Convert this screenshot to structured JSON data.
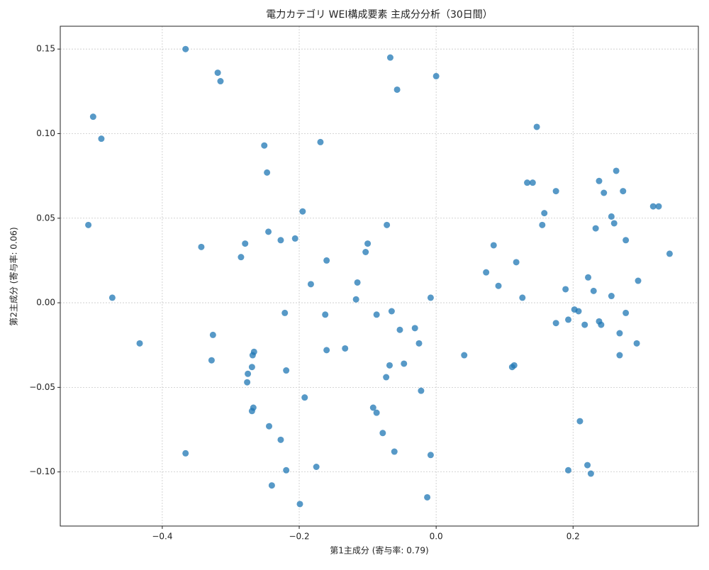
{
  "chart_data": {
    "type": "scatter",
    "title": "電力カテゴリ WEI構成要素 主成分分析（30日間）",
    "xlabel": "第1主成分 (寄与率: 0.79)",
    "ylabel": "第2主成分 (寄与率: 0.06)",
    "color": "#1f77b4",
    "grid": true,
    "xlim": [
      -0.549,
      0.383
    ],
    "ylim": [
      -0.132,
      0.1635
    ],
    "xticks": [
      {
        "value": -0.4,
        "label": "−0.4"
      },
      {
        "value": -0.2,
        "label": "−0.2"
      },
      {
        "value": 0.0,
        "label": "0.0"
      },
      {
        "value": 0.2,
        "label": "0.2"
      }
    ],
    "yticks": [
      {
        "value": -0.1,
        "label": "−0.10"
      },
      {
        "value": -0.05,
        "label": "−0.05"
      },
      {
        "value": 0.0,
        "label": "0.00"
      },
      {
        "value": 0.05,
        "label": "0.05"
      },
      {
        "value": 0.1,
        "label": "0.10"
      },
      {
        "value": 0.15,
        "label": "0.15"
      }
    ],
    "x": [
      -0.366,
      -0.319,
      -0.315,
      -0.501,
      -0.489,
      -0.508,
      -0.473,
      -0.433,
      -0.366,
      -0.343,
      -0.285,
      -0.279,
      -0.251,
      -0.247,
      -0.245,
      -0.227,
      -0.195,
      -0.206,
      -0.169,
      -0.16,
      -0.183,
      -0.221,
      -0.162,
      -0.326,
      -0.328,
      -0.266,
      -0.268,
      -0.269,
      -0.275,
      -0.276,
      -0.267,
      -0.269,
      -0.219,
      -0.192,
      -0.244,
      -0.227,
      -0.219,
      -0.24,
      -0.199,
      -0.175,
      -0.16,
      -0.133,
      -0.117,
      -0.115,
      -0.103,
      -0.1,
      -0.087,
      -0.067,
      -0.057,
      0.0,
      -0.072,
      -0.065,
      -0.053,
      -0.031,
      -0.025,
      -0.008,
      -0.068,
      -0.047,
      -0.073,
      -0.022,
      -0.092,
      -0.087,
      -0.078,
      -0.061,
      -0.008,
      -0.013,
      0.041,
      0.073,
      0.084,
      0.091,
      0.117,
      0.126,
      0.111,
      0.114,
      0.133,
      0.141,
      0.147,
      0.175,
      0.158,
      0.155,
      0.175,
      0.189,
      0.193,
      0.202,
      0.208,
      0.217,
      0.222,
      0.23,
      0.21,
      0.193,
      0.221,
      0.226,
      0.238,
      0.245,
      0.263,
      0.273,
      0.256,
      0.26,
      0.233,
      0.277,
      0.238,
      0.241,
      0.256,
      0.277,
      0.268,
      0.268,
      0.293,
      0.295,
      0.317,
      0.325,
      0.341
    ],
    "y": [
      0.15,
      0.136,
      0.131,
      0.11,
      0.097,
      0.046,
      0.003,
      -0.024,
      -0.089,
      0.033,
      0.027,
      0.035,
      0.093,
      0.077,
      0.042,
      0.037,
      0.054,
      0.038,
      0.095,
      0.025,
      0.011,
      -0.006,
      -0.007,
      -0.019,
      -0.034,
      -0.029,
      -0.031,
      -0.038,
      -0.042,
      -0.047,
      -0.062,
      -0.064,
      -0.04,
      -0.056,
      -0.073,
      -0.081,
      -0.099,
      -0.108,
      -0.119,
      -0.097,
      -0.028,
      -0.027,
      0.002,
      0.012,
      0.03,
      0.035,
      -0.007,
      0.145,
      0.126,
      0.134,
      0.046,
      -0.005,
      -0.016,
      -0.015,
      -0.024,
      0.003,
      -0.037,
      -0.036,
      -0.044,
      -0.052,
      -0.062,
      -0.065,
      -0.077,
      -0.088,
      -0.09,
      -0.115,
      -0.031,
      0.018,
      0.034,
      0.01,
      0.024,
      0.003,
      -0.038,
      -0.037,
      0.071,
      0.071,
      0.104,
      0.066,
      0.053,
      0.046,
      -0.012,
      0.008,
      -0.01,
      -0.004,
      -0.005,
      -0.013,
      0.015,
      0.007,
      -0.07,
      -0.099,
      -0.096,
      -0.101,
      0.072,
      0.065,
      0.078,
      0.066,
      0.051,
      0.047,
      0.044,
      0.037,
      -0.011,
      -0.013,
      0.004,
      -0.006,
      -0.018,
      -0.031,
      -0.024,
      0.013,
      0.057,
      0.057,
      0.029
    ]
  }
}
